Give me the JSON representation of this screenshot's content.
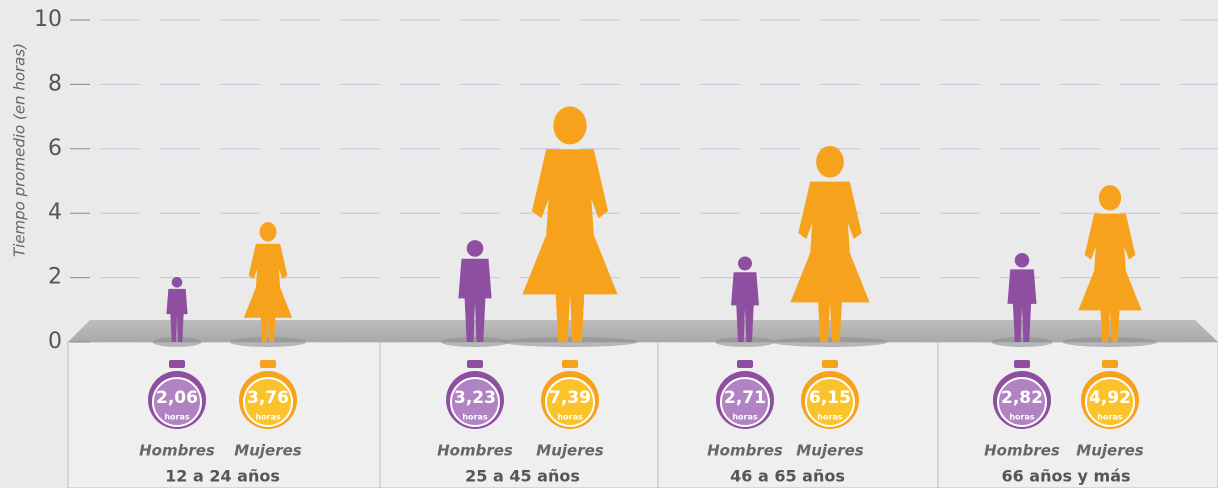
{
  "chart_data": {
    "type": "figure-bar",
    "y_label": "Tiempo promedio (en horas)",
    "categories": [
      "12 a 24 años",
      "25 a 45 años",
      "46 a 65 años",
      "66 años y más"
    ],
    "unit_label": "horas",
    "series": [
      {
        "name": "Hombres",
        "color": "#8e4fa0",
        "values": [
          2.06,
          3.23,
          2.71,
          2.82
        ],
        "value_labels": [
          "2,06",
          "3,23",
          "2,71",
          "2,82"
        ]
      },
      {
        "name": "Mujeres",
        "color": "#f6a21c",
        "values": [
          3.76,
          7.39,
          6.15,
          4.92
        ],
        "value_labels": [
          "3,76",
          "7,39",
          "6,15",
          "4,92"
        ]
      }
    ],
    "ylim": [
      0,
      10
    ],
    "yticks": [
      0,
      2,
      4,
      6,
      8,
      10
    ],
    "grid": true
  }
}
